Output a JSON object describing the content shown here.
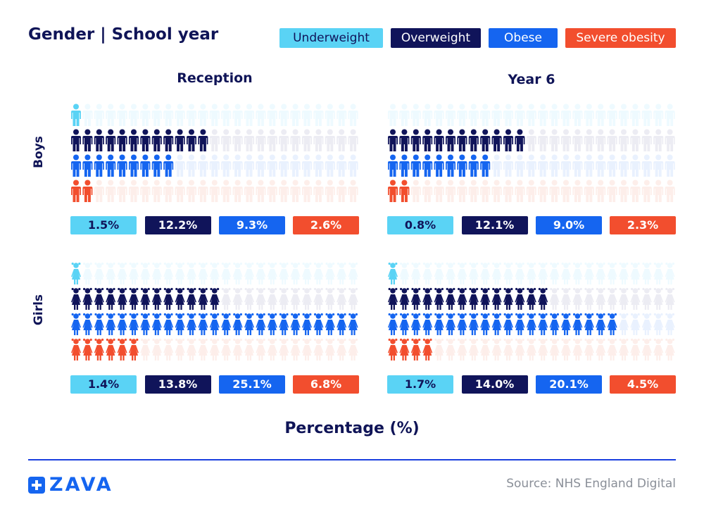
{
  "header": {
    "title": "Gender | School year"
  },
  "legend": [
    {
      "label": "Underweight",
      "color": "#5ad3f5",
      "faded": "#eefaff"
    },
    {
      "label": "Overweight",
      "color": "#10145a",
      "faded": "#ececf3"
    },
    {
      "label": "Obese",
      "color": "#1565f0",
      "faded": "#e9f1fe"
    },
    {
      "label": "Severe obesity",
      "color": "#f24e2e",
      "faded": "#fdeeea"
    }
  ],
  "chart_data": {
    "type": "pictogram",
    "unit": "one figure = 1%",
    "columns": [
      "Reception",
      "Year 6"
    ],
    "rows": [
      "Boys",
      "Girls"
    ],
    "categories": [
      "Underweight",
      "Overweight",
      "Obese",
      "Severe obesity"
    ],
    "panels": [
      {
        "gender": "Boys",
        "year": "Reception",
        "values": [
          1.5,
          12.2,
          9.3,
          2.6
        ],
        "labels": [
          "1.5%",
          "12.2%",
          "9.3%",
          "2.6%"
        ]
      },
      {
        "gender": "Boys",
        "year": "Year 6",
        "values": [
          0.8,
          12.1,
          9.0,
          2.3
        ],
        "labels": [
          "0.8%",
          "12.1%",
          "9.0%",
          "2.3%"
        ]
      },
      {
        "gender": "Girls",
        "year": "Reception",
        "values": [
          1.4,
          13.8,
          25.1,
          6.8
        ],
        "labels": [
          "1.4%",
          "13.8%",
          "25.1%",
          "6.8%"
        ]
      },
      {
        "gender": "Girls",
        "year": "Year 6",
        "values": [
          1.7,
          14.0,
          20.1,
          4.5
        ],
        "labels": [
          "1.7%",
          "14.0%",
          "20.1%",
          "4.5%"
        ]
      }
    ],
    "xlabel": "Percentage (%)"
  },
  "footer": {
    "brand": "ZAVA",
    "source": "Source: NHS England Digital"
  }
}
